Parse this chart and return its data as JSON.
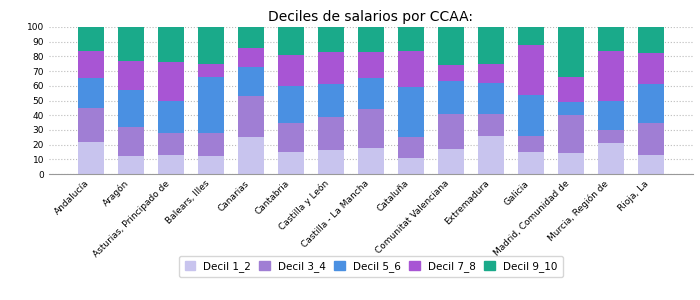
{
  "title": "Deciles de salarios por CCAA:",
  "categories": [
    "Andalucía",
    "Aragón",
    "Asturias, Principado de",
    "Balears, Illes",
    "Canarias",
    "Cantabria",
    "Castilla y León",
    "Castilla - La Mancha",
    "Cataluña",
    "Comunitat Valenciana",
    "Extremadura",
    "Galicia",
    "Madrid, Comunidad de",
    "Murcia, Región de",
    "Rioja, La"
  ],
  "decil_1_2": [
    22,
    12,
    13,
    12,
    25,
    15,
    16,
    18,
    11,
    17,
    26,
    15,
    14,
    21,
    13
  ],
  "decil_3_4": [
    23,
    20,
    15,
    16,
    28,
    20,
    23,
    26,
    14,
    24,
    15,
    11,
    26,
    9,
    22
  ],
  "decil_5_6": [
    20,
    25,
    22,
    38,
    20,
    25,
    22,
    21,
    34,
    22,
    21,
    28,
    9,
    20,
    26
  ],
  "decil_7_8": [
    19,
    20,
    26,
    9,
    13,
    21,
    22,
    18,
    25,
    11,
    13,
    34,
    17,
    34,
    21
  ],
  "decil_9_10": [
    16,
    23,
    24,
    25,
    14,
    19,
    17,
    17,
    16,
    26,
    25,
    12,
    34,
    16,
    18
  ],
  "colors": {
    "decil_1_2": "#c8c4ee",
    "decil_3_4": "#a07ed4",
    "decil_5_6": "#4a90e2",
    "decil_7_8": "#a855d4",
    "decil_9_10": "#1aaa8a"
  },
  "legend_labels": [
    "Decil 1_2",
    "Decil 3_4",
    "Decil 5_6",
    "Decil 7_8",
    "Decil 9_10"
  ],
  "ylim": [
    0,
    100
  ],
  "yticks": [
    0,
    10,
    20,
    30,
    40,
    50,
    60,
    70,
    80,
    90,
    100
  ],
  "background_color": "#ffffff",
  "grid_color": "#bbbbbb",
  "title_fontsize": 10,
  "tick_fontsize": 6.5,
  "legend_fontsize": 7.5,
  "bar_width": 0.65,
  "figure_width": 7.0,
  "figure_height": 3.0
}
